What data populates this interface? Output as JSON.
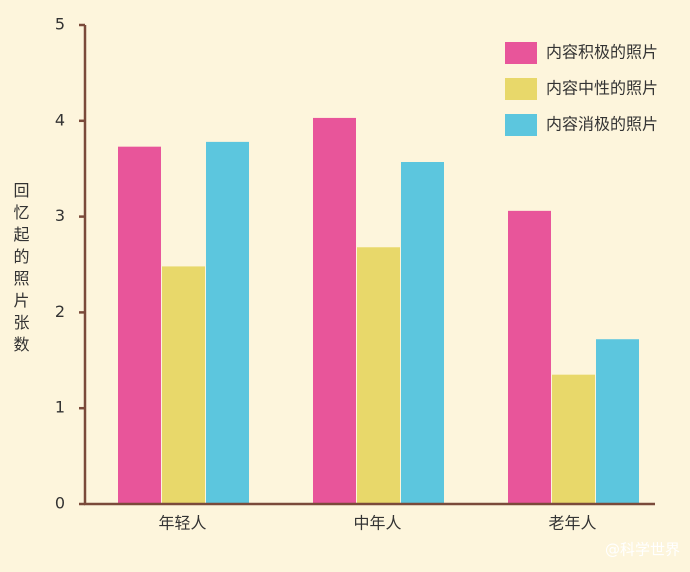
{
  "chart_data": {
    "type": "bar",
    "y_label": "回忆起的照片张数",
    "categories": [
      "年轻人",
      "中年人",
      "老年人"
    ],
    "series": [
      {
        "name": "内容积极的照片",
        "color": "#e8559a",
        "values": [
          3.73,
          4.03,
          3.06
        ]
      },
      {
        "name": "内容中性的照片",
        "color": "#e8d86a",
        "values": [
          2.48,
          2.68,
          1.35
        ]
      },
      {
        "name": "内容消极的照片",
        "color": "#5cc6de",
        "values": [
          3.78,
          3.57,
          1.72
        ]
      }
    ],
    "ylim": [
      0,
      5
    ],
    "yticks": [
      0,
      1,
      2,
      3,
      4,
      5
    ],
    "legend": "upper right",
    "watermark": "@科学世界"
  }
}
